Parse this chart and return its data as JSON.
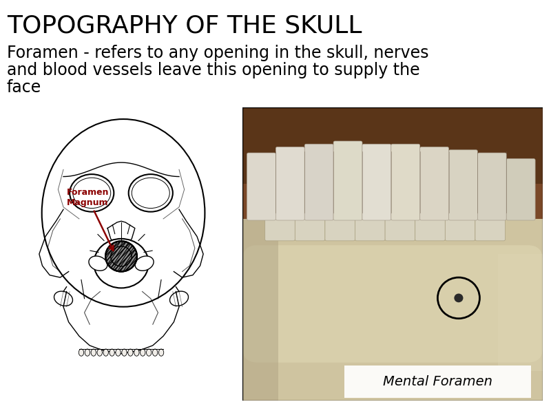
{
  "title": "TOPOGRAPHY OF THE SKULL",
  "title_fontsize": 26,
  "body_text_line1": "Foramen - refers to any opening in the skull, nerves",
  "body_text_line2": "and blood vessels leave this opening to supply the",
  "body_text_line3": "face",
  "body_fontsize": 17,
  "label_foramen_magnum": "Foramen\nMagnum",
  "label_mental_foramen": "Mental Foramen",
  "background_color": "#ffffff",
  "title_color": "#000000",
  "body_color": "#000000",
  "label_fm_color": "#8B0000",
  "photo_teeth_color": "#e8e0d0",
  "photo_bg_top": "#6b4c2a",
  "photo_bg_bottom": "#c8b896",
  "photo_jaw_color": "#d4c9a8",
  "photo_gum_color": "#8b6040",
  "mental_foramen_label_bg": "#f5f5f5"
}
